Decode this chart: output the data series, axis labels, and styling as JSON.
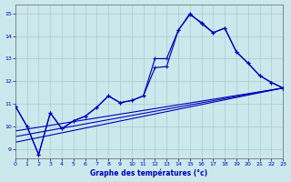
{
  "title": "Graphe des températures (°c)",
  "bg_color": "#cce8ec",
  "grid_color": "#a8cccc",
  "line_color": "#0000bb",
  "xlim": [
    0,
    23
  ],
  "ylim": [
    8.6,
    15.4
  ],
  "yticks": [
    9,
    10,
    11,
    12,
    13,
    14,
    15
  ],
  "xticks": [
    0,
    1,
    2,
    3,
    4,
    5,
    6,
    7,
    8,
    9,
    10,
    11,
    12,
    13,
    14,
    15,
    16,
    17,
    18,
    19,
    20,
    21,
    22,
    23
  ],
  "curve1_x": [
    0,
    1,
    2,
    3,
    4,
    5,
    6,
    7,
    8,
    9,
    10,
    11,
    12,
    13,
    14,
    15,
    16,
    17,
    18,
    19,
    20,
    21,
    22,
    23
  ],
  "curve1_y": [
    10.9,
    10.0,
    8.75,
    10.6,
    9.9,
    10.25,
    10.45,
    10.85,
    11.35,
    11.05,
    11.15,
    11.35,
    12.6,
    12.65,
    14.25,
    15.0,
    14.55,
    14.15,
    14.35,
    13.3,
    12.8,
    12.25,
    11.95,
    11.7
  ],
  "curve2_x": [
    0,
    1,
    2,
    3,
    4,
    5,
    6,
    7,
    8,
    9,
    10,
    11,
    12,
    13,
    14,
    15,
    16,
    17,
    18,
    19,
    20,
    21,
    22,
    23
  ],
  "curve2_y": [
    10.9,
    10.0,
    8.75,
    10.6,
    9.9,
    10.25,
    10.45,
    10.85,
    11.35,
    11.05,
    11.15,
    11.35,
    13.0,
    13.0,
    14.25,
    14.95,
    14.6,
    14.15,
    14.35,
    13.3,
    12.8,
    12.25,
    11.95,
    11.7
  ],
  "trend1_start": 9.3,
  "trend2_start": 9.55,
  "trend3_start": 9.8,
  "trend_end": 11.7
}
